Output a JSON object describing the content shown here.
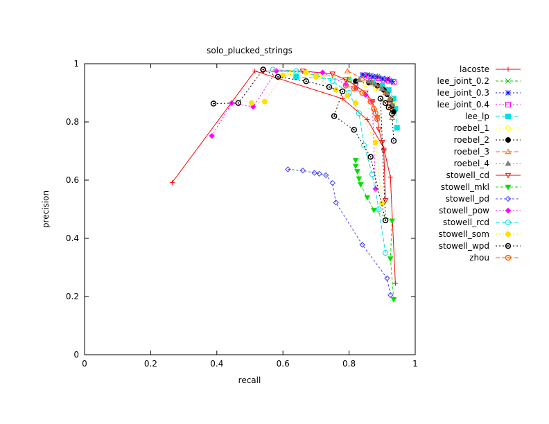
{
  "chart_data": {
    "type": "scatter",
    "title": "solo_plucked_strings",
    "xlabel": "recall",
    "ylabel": "precision",
    "xlim": [
      0,
      1
    ],
    "ylim": [
      0,
      1
    ],
    "xticks": [
      "0",
      "0.2",
      "0.4",
      "0.6",
      "0.8",
      "1"
    ],
    "yticks": [
      "0",
      "0.2",
      "0.4",
      "0.6",
      "0.8",
      "1"
    ],
    "grid": false,
    "legend_position": "right",
    "series": [
      {
        "name": "lacoste",
        "color": "#ff0000",
        "marker": "plus",
        "dash": "",
        "points": [
          [
            0.265,
            0.592
          ],
          [
            0.515,
            0.975
          ],
          [
            0.78,
            0.88
          ],
          [
            0.855,
            0.808
          ],
          [
            0.905,
            0.71
          ],
          [
            0.925,
            0.61
          ],
          [
            0.94,
            0.245
          ]
        ]
      },
      {
        "name": "lee_joint_0.2",
        "color": "#00c000",
        "marker": "x",
        "dash": "4,3",
        "points": [
          [
            0.845,
            0.962
          ],
          [
            0.865,
            0.96
          ],
          [
            0.88,
            0.958
          ],
          [
            0.9,
            0.95
          ],
          [
            0.915,
            0.945
          ],
          [
            0.925,
            0.94
          ],
          [
            0.935,
            0.935
          ]
        ]
      },
      {
        "name": "lee_joint_0.3",
        "color": "#0000ff",
        "marker": "star",
        "dash": "2,3",
        "points": [
          [
            0.84,
            0.962
          ],
          [
            0.855,
            0.962
          ],
          [
            0.87,
            0.955
          ],
          [
            0.885,
            0.955
          ],
          [
            0.9,
            0.948
          ],
          [
            0.915,
            0.948
          ],
          [
            0.93,
            0.94
          ]
        ]
      },
      {
        "name": "lee_joint_0.4",
        "color": "#ff00ff",
        "marker": "square",
        "dash": "2,3",
        "points": [
          [
            0.845,
            0.96
          ],
          [
            0.86,
            0.958
          ],
          [
            0.875,
            0.952
          ],
          [
            0.89,
            0.95
          ],
          [
            0.905,
            0.945
          ],
          [
            0.92,
            0.942
          ],
          [
            0.935,
            0.938
          ]
        ]
      },
      {
        "name": "lee_lp",
        "color": "#00e0e0",
        "marker": "filled-square",
        "dash": "6,3",
        "points": [
          [
            0.64,
            0.955
          ],
          [
            0.8,
            0.945
          ],
          [
            0.87,
            0.935
          ],
          [
            0.9,
            0.925
          ],
          [
            0.92,
            0.91
          ],
          [
            0.935,
            0.88
          ],
          [
            0.94,
            0.845
          ],
          [
            0.945,
            0.78
          ]
        ]
      },
      {
        "name": "roebel_1",
        "color": "#ffff00",
        "marker": "circle",
        "dash": "2,3",
        "points": [
          [
            0.62,
            0.97
          ],
          [
            0.72,
            0.96
          ],
          [
            0.8,
            0.95
          ],
          [
            0.85,
            0.93
          ],
          [
            0.88,
            0.915
          ],
          [
            0.91,
            0.9
          ],
          [
            0.925,
            0.88
          ],
          [
            0.935,
            0.86
          ]
        ]
      },
      {
        "name": "roebel_2",
        "color": "#000000",
        "marker": "filled-circle",
        "dash": "2,3",
        "points": [
          [
            0.82,
            0.94
          ],
          [
            0.86,
            0.935
          ],
          [
            0.885,
            0.925
          ],
          [
            0.905,
            0.91
          ],
          [
            0.915,
            0.895
          ],
          [
            0.925,
            0.875
          ],
          [
            0.93,
            0.855
          ],
          [
            0.935,
            0.835
          ]
        ]
      },
      {
        "name": "roebel_3",
        "color": "#ff6000",
        "marker": "triangle",
        "dash": "6,3",
        "points": [
          [
            0.795,
            0.975
          ],
          [
            0.84,
            0.95
          ],
          [
            0.87,
            0.935
          ],
          [
            0.89,
            0.92
          ],
          [
            0.91,
            0.9
          ],
          [
            0.92,
            0.875
          ],
          [
            0.925,
            0.85
          ],
          [
            0.93,
            0.815
          ]
        ]
      },
      {
        "name": "roebel_4",
        "color": "#808080",
        "marker": "filled-triangle",
        "dash": "2,3",
        "points": [
          [
            0.83,
            0.945
          ],
          [
            0.86,
            0.94
          ],
          [
            0.88,
            0.93
          ],
          [
            0.9,
            0.915
          ],
          [
            0.915,
            0.9
          ],
          [
            0.925,
            0.88
          ],
          [
            0.93,
            0.86
          ]
        ]
      },
      {
        "name": "stowell_cd",
        "color": "#ff0000",
        "marker": "inv-triangle",
        "dash": "",
        "points": [
          [
            0.54,
            0.975
          ],
          [
            0.66,
            0.975
          ],
          [
            0.75,
            0.965
          ],
          [
            0.79,
            0.945
          ],
          [
            0.82,
            0.925
          ],
          [
            0.85,
            0.9
          ],
          [
            0.87,
            0.87
          ],
          [
            0.885,
            0.815
          ],
          [
            0.89,
            0.775
          ],
          [
            0.9,
            0.73
          ],
          [
            0.905,
            0.7
          ],
          [
            0.91,
            0.53
          ]
        ]
      },
      {
        "name": "stowell_mkl",
        "color": "#00e000",
        "marker": "filled-inv-triangle",
        "dash": "4,3",
        "points": [
          [
            0.82,
            0.668
          ],
          [
            0.82,
            0.648
          ],
          [
            0.825,
            0.63
          ],
          [
            0.83,
            0.605
          ],
          [
            0.835,
            0.585
          ],
          [
            0.855,
            0.54
          ],
          [
            0.875,
            0.497
          ],
          [
            0.93,
            0.46
          ],
          [
            0.925,
            0.33
          ],
          [
            0.935,
            0.19
          ]
        ]
      },
      {
        "name": "stowell_pd",
        "color": "#4040ff",
        "marker": "diamond",
        "dash": "3,3",
        "points": [
          [
            0.615,
            0.637
          ],
          [
            0.66,
            0.633
          ],
          [
            0.695,
            0.625
          ],
          [
            0.71,
            0.622
          ],
          [
            0.73,
            0.617
          ],
          [
            0.75,
            0.59
          ],
          [
            0.76,
            0.523
          ],
          [
            0.84,
            0.378
          ],
          [
            0.915,
            0.263
          ],
          [
            0.925,
            0.205
          ]
        ]
      },
      {
        "name": "stowell_pow",
        "color": "#ff00ff",
        "marker": "filled-diamond",
        "dash": "2,3",
        "points": [
          [
            0.385,
            0.752
          ],
          [
            0.445,
            0.865
          ],
          [
            0.51,
            0.852
          ],
          [
            0.58,
            0.975
          ],
          [
            0.67,
            0.972
          ],
          [
            0.72,
            0.97
          ],
          [
            0.79,
            0.93
          ],
          [
            0.82,
            0.915
          ],
          [
            0.85,
            0.893
          ],
          [
            0.87,
            0.87
          ],
          [
            0.88,
            0.57
          ]
        ]
      },
      {
        "name": "stowell_rcd",
        "color": "#00e0e0",
        "marker": "circle",
        "dash": "6,3",
        "points": [
          [
            0.57,
            0.98
          ],
          [
            0.64,
            0.975
          ],
          [
            0.7,
            0.96
          ],
          [
            0.75,
            0.94
          ],
          [
            0.8,
            0.9
          ],
          [
            0.83,
            0.83
          ],
          [
            0.845,
            0.72
          ],
          [
            0.87,
            0.62
          ],
          [
            0.89,
            0.5
          ],
          [
            0.91,
            0.35
          ]
        ]
      },
      {
        "name": "stowell_som",
        "color": "#ffe000",
        "marker": "filled-circle",
        "dash": "2,3",
        "points": [
          [
            0.505,
            0.865
          ],
          [
            0.545,
            0.87
          ],
          [
            0.6,
            0.96
          ],
          [
            0.67,
            0.97
          ],
          [
            0.7,
            0.955
          ],
          [
            0.76,
            0.91
          ],
          [
            0.795,
            0.89
          ],
          [
            0.82,
            0.865
          ],
          [
            0.88,
            0.73
          ],
          [
            0.9,
            0.52
          ]
        ]
      },
      {
        "name": "stowell_wpd",
        "color": "#000000",
        "marker": "dot-circle",
        "dash": "2,3",
        "points": [
          [
            0.39,
            0.863
          ],
          [
            0.465,
            0.865
          ],
          [
            0.54,
            0.98
          ],
          [
            0.585,
            0.955
          ],
          [
            0.67,
            0.94
          ],
          [
            0.74,
            0.92
          ],
          [
            0.78,
            0.905
          ],
          [
            0.755,
            0.82
          ],
          [
            0.815,
            0.773
          ],
          [
            0.865,
            0.68
          ],
          [
            0.91,
            0.462
          ],
          [
            0.895,
            0.88
          ],
          [
            0.91,
            0.865
          ],
          [
            0.92,
            0.85
          ],
          [
            0.93,
            0.828
          ],
          [
            0.935,
            0.735
          ]
        ]
      },
      {
        "name": "zhou",
        "color": "#ff6000",
        "marker": "dot-circle",
        "dash": "6,3",
        "points": [
          [
            0.79,
            0.925
          ],
          [
            0.815,
            0.915
          ],
          [
            0.84,
            0.9
          ],
          [
            0.865,
            0.87
          ],
          [
            0.875,
            0.845
          ],
          [
            0.88,
            0.83
          ],
          [
            0.885,
            0.81
          ]
        ]
      }
    ]
  }
}
